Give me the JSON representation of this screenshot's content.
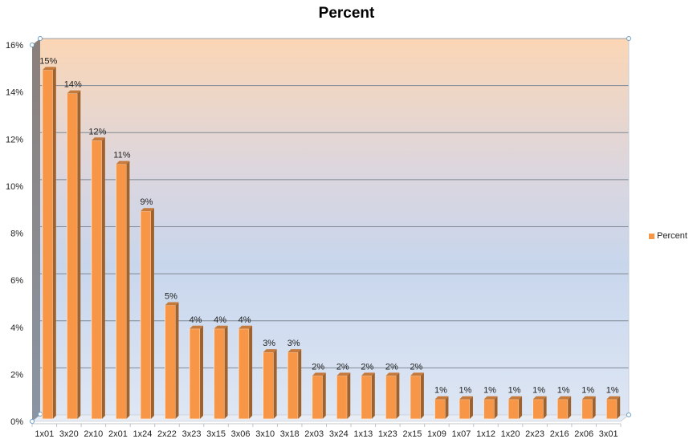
{
  "chart_data": {
    "type": "bar",
    "title": "Percent",
    "xlabel": "",
    "ylabel": "",
    "ylim": [
      0,
      16
    ],
    "yticks": [
      "0%",
      "2%",
      "4%",
      "6%",
      "8%",
      "10%",
      "12%",
      "14%",
      "16%"
    ],
    "grid": true,
    "legend_position": "right",
    "categories": [
      "1x01",
      "3x20",
      "2x10",
      "2x01",
      "1x24",
      "2x22",
      "3x23",
      "3x15",
      "3x06",
      "3x10",
      "3x18",
      "2x03",
      "3x24",
      "1x13",
      "1x23",
      "2x15",
      "1x09",
      "1x07",
      "1x12",
      "1x20",
      "2x23",
      "2x16",
      "2x06",
      "3x01"
    ],
    "series": [
      {
        "name": "Percent",
        "color": "#f79646",
        "values": [
          15,
          14,
          12,
          11,
          9,
          5,
          4,
          4,
          4,
          3,
          3,
          2,
          2,
          2,
          2,
          2,
          1,
          1,
          1,
          1,
          1,
          1,
          1,
          1
        ],
        "labels": [
          "15%",
          "14%",
          "12%",
          "11%",
          "9%",
          "5%",
          "4%",
          "4%",
          "4%",
          "3%",
          "3%",
          "2%",
          "2%",
          "2%",
          "2%",
          "2%",
          "1%",
          "1%",
          "1%",
          "1%",
          "1%",
          "1%",
          "1%",
          "1%"
        ]
      }
    ]
  },
  "legend": {
    "label": "Percent"
  }
}
